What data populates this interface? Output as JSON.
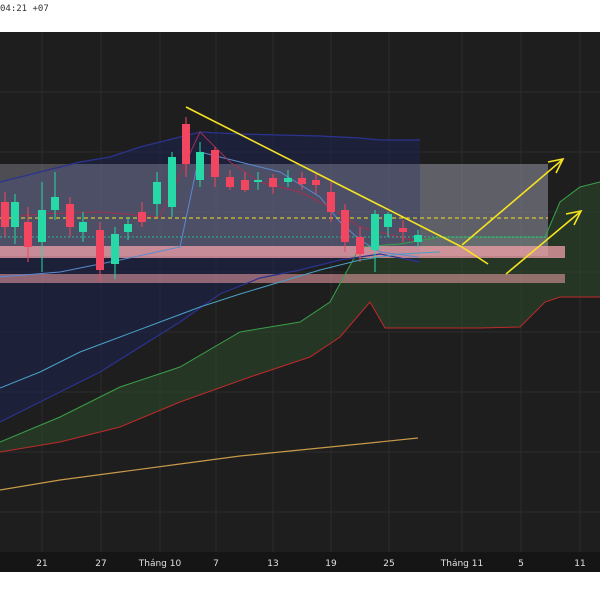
{
  "header": {
    "timestamp": "04:21 +07"
  },
  "chart_data": {
    "type": "candlestick",
    "xlabel": "",
    "ylabel": "",
    "x_tick_labels": [
      "21",
      "27",
      "Tháng 10",
      "7",
      "13",
      "19",
      "25",
      "Tháng 11",
      "5",
      "11"
    ],
    "colors": {
      "background": "#1e1e1e",
      "up": "#26d9a6",
      "down": "#f2455f",
      "trendline": "#f5e321",
      "resistance_zone": "#b3b0c8",
      "support_zone": "#f0a0a8",
      "ichimoku_cloud": "#2c4a2c",
      "bollinger_band": "#2b3390",
      "ma_slow": "#c89a4a",
      "ma_mid": "#4aa0c8"
    },
    "grid": true,
    "legend": "none"
  }
}
